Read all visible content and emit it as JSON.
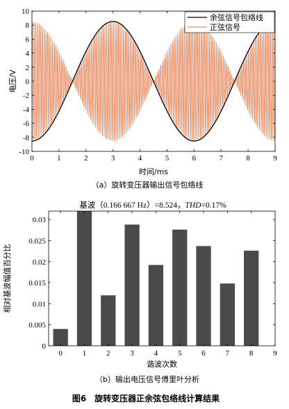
{
  "figure": {
    "caption": "图6　旋转变压器正余弦包络线计算结果"
  },
  "chart_data": [
    {
      "type": "line",
      "caption": "（a）旋转变压器输出信号包络线",
      "xlabel": "时间/ms",
      "ylabel": "电压/V",
      "xlim": [
        0,
        9
      ],
      "ylim": [
        -10,
        10
      ],
      "xticks": [
        0,
        1,
        2,
        3,
        4,
        5,
        6,
        7,
        8,
        9
      ],
      "yticks": [
        -10,
        -8,
        -6,
        -4,
        -2,
        0,
        2,
        4,
        6,
        8,
        10
      ],
      "legend_position": "top-right",
      "amplitude": 8.524,
      "envelope_period_ms": 6,
      "carrier_cycles_per_ms": 16,
      "series": [
        {
          "name": "余弦信号包络线",
          "color": "#000000",
          "description_values": {
            "peak": 8.524,
            "zero_crossings_ms": [
              1.5,
              4.5,
              7.5
            ],
            "min_at_ms": 3,
            "max_at_ms": 6
          }
        },
        {
          "name": "正弦信号",
          "color": "#e8895f",
          "description_values": {
            "peak": 8.524
          }
        }
      ]
    },
    {
      "type": "bar",
      "caption": "（b）输出电压信号傅里叶分析",
      "title_prefix": "基波（0.166 667 Hz）=8.524，",
      "title_thd_label": "THD",
      "title_thd_value": "=0.17%",
      "xlabel": "谐波次数",
      "ylabel": "相对基波幅值百分比",
      "xlim": [
        -0.5,
        9
      ],
      "ylim": [
        0,
        0.032
      ],
      "xticks": [
        0,
        1,
        2,
        3,
        4,
        5,
        6,
        7,
        8,
        9
      ],
      "yticks": [
        0,
        0.005,
        0.01,
        0.015,
        0.02,
        0.025,
        0.03
      ],
      "ytick_labels": [
        "0",
        "0.005",
        "0.01",
        "0.015",
        "0.02",
        "0.025",
        "0.03"
      ],
      "bar_color": "#4a4a4a",
      "categories": [
        0,
        1,
        2,
        3,
        4,
        5,
        6,
        7,
        8
      ],
      "values": [
        0.004,
        0.0325,
        0.012,
        0.0288,
        0.0192,
        0.0276,
        0.0237,
        0.0148,
        0.0226
      ]
    }
  ]
}
